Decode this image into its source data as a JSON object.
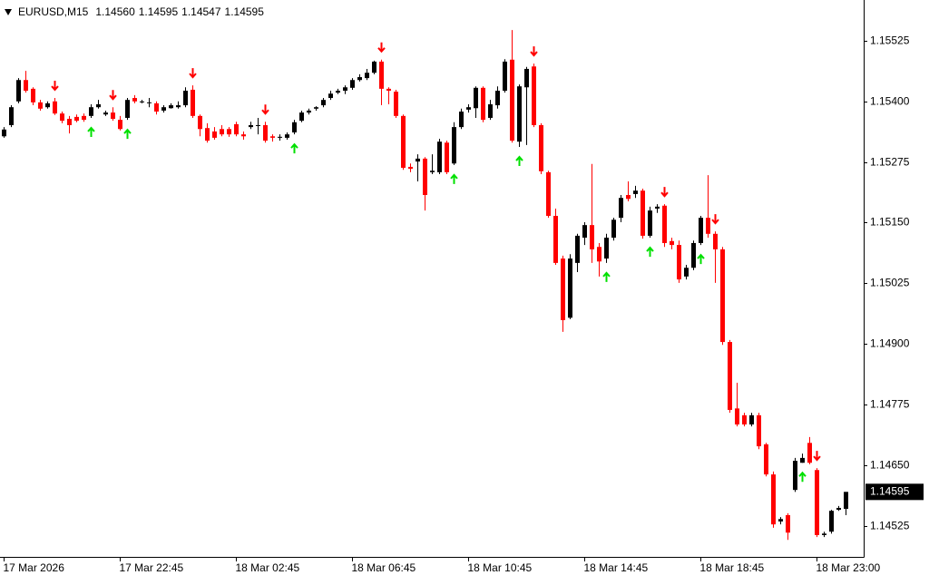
{
  "chart_data": {
    "type": "candlestick",
    "symbol": "EURUSD,M15",
    "header_values": [
      "1.14560",
      "1.14595",
      "1.14547",
      "1.14595"
    ],
    "bull_color": "#000000",
    "bear_color": "#ff0000",
    "arrow_down_color": "#ff0000",
    "arrow_up_color": "#00e000",
    "ylim": [
      1.14461,
      1.15609
    ],
    "yticks": [
      {
        "value": 1.15525,
        "label": "1.15525"
      },
      {
        "value": 1.154,
        "label": "1.15400"
      },
      {
        "value": 1.15275,
        "label": "1.15275"
      },
      {
        "value": 1.1515,
        "label": "1.15150"
      },
      {
        "value": 1.15025,
        "label": "1.15025"
      },
      {
        "value": 1.149,
        "label": "1.14900"
      },
      {
        "value": 1.14775,
        "label": "1.14775"
      },
      {
        "value": 1.1465,
        "label": "1.14650"
      },
      {
        "value": 1.14525,
        "label": "1.14525"
      }
    ],
    "last_price": {
      "value": 1.14595,
      "label": "1.14595"
    },
    "categories": [
      "17 Mar 2026",
      null,
      null,
      null,
      null,
      null,
      null,
      null,
      null,
      null,
      null,
      null,
      null,
      null,
      null,
      null,
      "17 Mar 22:45",
      null,
      null,
      null,
      null,
      null,
      null,
      null,
      null,
      null,
      null,
      null,
      null,
      null,
      null,
      null,
      "18 Mar 02:45",
      null,
      null,
      null,
      null,
      null,
      null,
      null,
      null,
      null,
      null,
      null,
      null,
      null,
      null,
      null,
      "18 Mar 06:45",
      null,
      null,
      null,
      null,
      null,
      null,
      null,
      null,
      null,
      null,
      null,
      null,
      null,
      null,
      null,
      "18 Mar 10:45",
      null,
      null,
      null,
      null,
      null,
      null,
      null,
      null,
      null,
      null,
      null,
      null,
      null,
      null,
      null,
      "18 Mar 14:45",
      null,
      null,
      null,
      null,
      null,
      null,
      null,
      null,
      null,
      null,
      null,
      null,
      null,
      null,
      null,
      "18 Mar 18:45",
      null,
      null,
      null,
      null,
      null,
      null,
      null,
      null,
      null,
      null,
      null,
      null,
      null,
      null,
      null,
      "18 Mar 23:00",
      null,
      null,
      null,
      null
    ],
    "open": [
      1.15328,
      1.15351,
      1.154,
      1.15444,
      1.15426,
      1.15398,
      1.15388,
      1.154,
      1.15375,
      1.15364,
      1.15368,
      1.1537,
      1.1537,
      1.15388,
      1.15373,
      1.15377,
      1.15362,
      1.15366,
      1.15407,
      1.15398,
      1.15398,
      1.15396,
      1.15381,
      1.15386,
      1.15388,
      1.15392,
      1.15424,
      1.1537,
      1.15345,
      1.15338,
      1.15343,
      1.15343,
      1.15353,
      1.15332,
      1.15347,
      1.15351,
      1.15351,
      1.15328,
      1.15325,
      1.15325,
      1.15336,
      1.1536,
      1.15377,
      1.15385,
      1.15392,
      1.15407,
      1.15418,
      1.15422,
      1.15428,
      1.15444,
      1.15448,
      1.15459,
      1.15482,
      1.15426,
      1.1542,
      1.1537,
      1.15265,
      1.15276,
      1.15282,
      1.15254,
      1.15254,
      1.15315,
      1.15272,
      1.15347,
      1.15383,
      1.15386,
      1.15428,
      1.15366,
      1.15392,
      1.15422,
      1.15486,
      1.15317,
      1.15429,
      1.15472,
      1.15351,
      1.15254,
      1.15164,
      1.15076,
      1.14954,
      1.15067,
      1.15119,
      1.15145,
      1.151,
      1.15076,
      1.15119,
      1.1516,
      1.15207,
      1.15209,
      1.15216,
      1.15123,
      1.15179,
      1.15185,
      1.15112,
      1.15104,
      1.15039,
      1.15057,
      1.15108,
      1.1516,
      1.15127,
      1.15095,
      1.14904,
      1.14767,
      1.14753,
      1.14734,
      1.14753,
      1.14693,
      1.14631,
      1.14534,
      1.14547,
      1.14599,
      1.14655,
      1.14696,
      1.1464,
      1.14506,
      1.14513,
      1.14558,
      1.1456
    ],
    "high": [
      1.15347,
      1.15392,
      1.15448,
      1.15463,
      1.15429,
      1.15403,
      1.154,
      1.15407,
      1.15379,
      1.1537,
      1.15373,
      1.15375,
      1.15394,
      1.15403,
      1.15381,
      1.15388,
      1.1537,
      1.15407,
      1.15413,
      1.15403,
      1.15407,
      1.154,
      1.15392,
      1.15396,
      1.154,
      1.15429,
      1.15433,
      1.15373,
      1.15355,
      1.15347,
      1.15351,
      1.15347,
      1.15358,
      1.15338,
      1.15358,
      1.15366,
      1.15358,
      1.15332,
      1.15332,
      1.15336,
      1.15362,
      1.15381,
      1.15385,
      1.1539,
      1.15407,
      1.15422,
      1.15426,
      1.15433,
      1.15448,
      1.15456,
      1.15467,
      1.15484,
      1.15486,
      1.15429,
      1.15424,
      1.15373,
      1.15272,
      1.15291,
      1.15285,
      1.15291,
      1.15323,
      1.15319,
      1.15357,
      1.15385,
      1.15394,
      1.15431,
      1.15431,
      1.15403,
      1.15431,
      1.15487,
      1.15547,
      1.15435,
      1.15471,
      1.15478,
      1.15355,
      1.15257,
      1.15179,
      1.15082,
      1.15085,
      1.15127,
      1.15151,
      1.15271,
      1.15108,
      1.15127,
      1.1516,
      1.15207,
      1.15235,
      1.15226,
      1.1522,
      1.15183,
      1.15188,
      1.15188,
      1.15119,
      1.15113,
      1.15063,
      1.15113,
      1.15164,
      1.15248,
      1.15132,
      1.151,
      1.14908,
      1.1482,
      1.14758,
      1.14758,
      1.14758,
      1.14696,
      1.14637,
      1.14543,
      1.14551,
      1.14665,
      1.14674,
      1.14708,
      1.14644,
      1.14513,
      1.14558,
      1.14566,
      1.14595
    ],
    "low": [
      1.15325,
      1.15347,
      1.15396,
      1.15418,
      1.15392,
      1.15381,
      1.15385,
      1.15372,
      1.15355,
      1.15334,
      1.15357,
      1.15358,
      1.15366,
      1.15385,
      1.1537,
      1.1536,
      1.1534,
      1.15362,
      1.15396,
      1.15396,
      1.15388,
      1.15373,
      1.15377,
      1.15385,
      1.15385,
      1.15388,
      1.15366,
      1.15328,
      1.15315,
      1.15321,
      1.15328,
      1.15327,
      1.15328,
      1.15321,
      1.15343,
      1.15332,
      1.15315,
      1.15317,
      1.15319,
      1.15321,
      1.15332,
      1.15357,
      1.15373,
      1.15381,
      1.15388,
      1.15403,
      1.15415,
      1.15415,
      1.15424,
      1.15441,
      1.15444,
      1.15456,
      1.15392,
      1.15394,
      1.15366,
      1.15259,
      1.15254,
      1.15235,
      1.15175,
      1.1525,
      1.1525,
      1.1525,
      1.15269,
      1.15343,
      1.15377,
      1.15366,
      1.15357,
      1.15362,
      1.15385,
      1.15418,
      1.15315,
      1.15306,
      1.1531,
      1.15347,
      1.1525,
      1.1516,
      1.15063,
      1.14925,
      1.14951,
      1.15048,
      1.15104,
      1.15067,
      1.15039,
      1.15067,
      1.15113,
      1.15151,
      1.15194,
      1.15201,
      1.15117,
      1.15119,
      1.1517,
      1.151,
      1.15095,
      1.15026,
      1.15033,
      1.15052,
      1.15104,
      1.15119,
      1.15026,
      1.14898,
      1.14758,
      1.1473,
      1.1473,
      1.1473,
      1.14683,
      1.14627,
      1.14521,
      1.14528,
      1.14496,
      1.14595,
      1.14655,
      1.14652,
      1.14502,
      1.14502,
      1.14509,
      1.14556,
      1.14547
    ],
    "close": [
      1.15342,
      1.15388,
      1.15444,
      1.15422,
      1.15398,
      1.15385,
      1.15396,
      1.15375,
      1.1536,
      1.15351,
      1.1536,
      1.15362,
      1.15388,
      1.15394,
      1.15377,
      1.15364,
      1.15343,
      1.15403,
      1.154,
      1.154,
      1.15398,
      1.15379,
      1.15388,
      1.15392,
      1.15392,
      1.15422,
      1.1537,
      1.15343,
      1.15319,
      1.15325,
      1.15332,
      1.15332,
      1.15332,
      1.15328,
      1.15351,
      1.15351,
      1.15319,
      1.15325,
      1.15327,
      1.15332,
      1.15357,
      1.15377,
      1.15381,
      1.15388,
      1.15403,
      1.15416,
      1.15422,
      1.15429,
      1.15444,
      1.1545,
      1.15459,
      1.15482,
      1.15426,
      1.15422,
      1.1537,
      1.15263,
      1.15261,
      1.15282,
      1.15207,
      1.15257,
      1.15317,
      1.15254,
      1.15347,
      1.15379,
      1.15388,
      1.15428,
      1.15362,
      1.15394,
      1.15422,
      1.15482,
      1.15319,
      1.15431,
      1.15467,
      1.15351,
      1.15256,
      1.15164,
      1.15067,
      1.14949,
      1.15076,
      1.15123,
      1.15145,
      1.15095,
      1.1507,
      1.15119,
      1.15156,
      1.15201,
      1.15199,
      1.15216,
      1.15123,
      1.15175,
      1.15183,
      1.15108,
      1.15104,
      1.15033,
      1.15057,
      1.15108,
      1.1516,
      1.15127,
      1.15095,
      1.14904,
      1.14764,
      1.14734,
      1.14734,
      1.14753,
      1.14689,
      1.14631,
      1.14528,
      1.14539,
      1.14511,
      1.14659,
      1.14665,
      1.14655,
      1.14506,
      1.14509,
      1.14556,
      1.14562,
      1.14595
    ],
    "arrows_down": [
      7,
      15,
      26,
      36,
      52,
      73,
      91,
      98,
      112
    ],
    "arrows_up": [
      12,
      17,
      40,
      62,
      71,
      83,
      89,
      96,
      110
    ]
  }
}
